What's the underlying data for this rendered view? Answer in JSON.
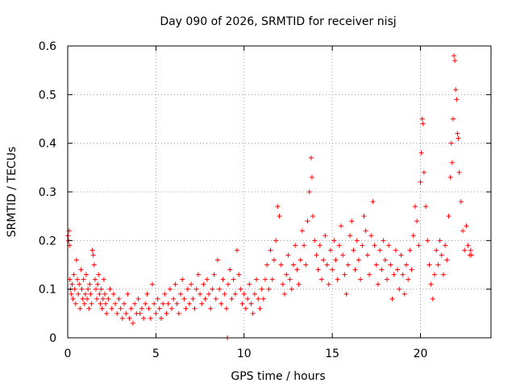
{
  "chart_data": {
    "type": "scatter",
    "title": "Day 090 of 2026, SRMTID for receiver nisj",
    "xlabel": "GPS time / hours",
    "ylabel": "SRMTID / TECUs",
    "xlim": [
      0,
      24
    ],
    "ylim": [
      0,
      0.6
    ],
    "xticks": [
      0,
      5,
      10,
      15,
      20
    ],
    "xtick_labels": [
      "0",
      "5",
      "10",
      "15",
      "20"
    ],
    "yticks": [
      0,
      0.1,
      0.2,
      0.3,
      0.4,
      0.5,
      0.6
    ],
    "ytick_labels": [
      "0",
      "0.1",
      "0.2",
      "0.3",
      "0.4",
      "0.5",
      "0.6"
    ],
    "grid": true,
    "marker": "plus",
    "color": "#ff0000",
    "series": [
      {
        "name": "SRMTID",
        "points": [
          [
            0.02,
            0.21
          ],
          [
            0.05,
            0.2
          ],
          [
            0.08,
            0.22
          ],
          [
            0.1,
            0.19
          ],
          [
            0.12,
            0.12
          ],
          [
            0.15,
            0.1
          ],
          [
            0.2,
            0.09
          ],
          [
            0.25,
            0.11
          ],
          [
            0.3,
            0.08
          ],
          [
            0.35,
            0.13
          ],
          [
            0.4,
            0.1
          ],
          [
            0.45,
            0.07
          ],
          [
            0.5,
            0.16
          ],
          [
            0.55,
            0.12
          ],
          [
            0.6,
            0.09
          ],
          [
            0.65,
            0.11
          ],
          [
            0.7,
            0.06
          ],
          [
            0.75,
            0.14
          ],
          [
            0.8,
            0.1
          ],
          [
            0.85,
            0.08
          ],
          [
            0.9,
            0.12
          ],
          [
            0.95,
            0.07
          ],
          [
            1.0,
            0.09
          ],
          [
            1.05,
            0.13
          ],
          [
            1.1,
            0.08
          ],
          [
            1.15,
            0.1
          ],
          [
            1.2,
            0.06
          ],
          [
            1.25,
            0.11
          ],
          [
            1.3,
            0.09
          ],
          [
            1.35,
            0.07
          ],
          [
            1.4,
            0.18
          ],
          [
            1.45,
            0.17
          ],
          [
            1.5,
            0.15
          ],
          [
            1.55,
            0.12
          ],
          [
            1.6,
            0.1
          ],
          [
            1.65,
            0.08
          ],
          [
            1.7,
            0.11
          ],
          [
            1.75,
            0.13
          ],
          [
            1.8,
            0.09
          ],
          [
            1.85,
            0.07
          ],
          [
            1.9,
            0.1
          ],
          [
            1.95,
            0.06
          ],
          [
            2.0,
            0.08
          ],
          [
            2.05,
            0.12
          ],
          [
            2.1,
            0.09
          ],
          [
            2.15,
            0.07
          ],
          [
            2.2,
            0.05
          ],
          [
            2.3,
            0.08
          ],
          [
            2.4,
            0.1
          ],
          [
            2.5,
            0.06
          ],
          [
            2.6,
            0.09
          ],
          [
            2.7,
            0.07
          ],
          [
            2.8,
            0.05
          ],
          [
            2.9,
            0.08
          ],
          [
            3.0,
            0.06
          ],
          [
            3.1,
            0.04
          ],
          [
            3.2,
            0.07
          ],
          [
            3.3,
            0.05
          ],
          [
            3.4,
            0.09
          ],
          [
            3.5,
            0.04
          ],
          [
            3.6,
            0.06
          ],
          [
            3.7,
            0.03
          ],
          [
            3.8,
            0.07
          ],
          [
            3.9,
            0.05
          ],
          [
            4.0,
            0.08
          ],
          [
            4.1,
            0.05
          ],
          [
            4.2,
            0.06
          ],
          [
            4.3,
            0.04
          ],
          [
            4.4,
            0.07
          ],
          [
            4.5,
            0.09
          ],
          [
            4.6,
            0.06
          ],
          [
            4.7,
            0.04
          ],
          [
            4.8,
            0.11
          ],
          [
            4.9,
            0.07
          ],
          [
            5.0,
            0.05
          ],
          [
            5.1,
            0.08
          ],
          [
            5.2,
            0.06
          ],
          [
            5.3,
            0.04
          ],
          [
            5.4,
            0.07
          ],
          [
            5.5,
            0.09
          ],
          [
            5.6,
            0.05
          ],
          [
            5.7,
            0.07
          ],
          [
            5.8,
            0.1
          ],
          [
            5.9,
            0.06
          ],
          [
            6.0,
            0.08
          ],
          [
            6.1,
            0.11
          ],
          [
            6.2,
            0.07
          ],
          [
            6.3,
            0.05
          ],
          [
            6.4,
            0.09
          ],
          [
            6.5,
            0.12
          ],
          [
            6.6,
            0.08
          ],
          [
            6.7,
            0.06
          ],
          [
            6.8,
            0.1
          ],
          [
            6.9,
            0.07
          ],
          [
            7.0,
            0.11
          ],
          [
            7.1,
            0.08
          ],
          [
            7.2,
            0.06
          ],
          [
            7.3,
            0.1
          ],
          [
            7.4,
            0.13
          ],
          [
            7.5,
            0.09
          ],
          [
            7.6,
            0.07
          ],
          [
            7.7,
            0.11
          ],
          [
            7.8,
            0.08
          ],
          [
            7.9,
            0.12
          ],
          [
            8.0,
            0.09
          ],
          [
            8.1,
            0.06
          ],
          [
            8.2,
            0.1
          ],
          [
            8.3,
            0.13
          ],
          [
            8.4,
            0.08
          ],
          [
            8.5,
            0.16
          ],
          [
            8.6,
            0.1
          ],
          [
            8.7,
            0.07
          ],
          [
            8.8,
            0.12
          ],
          [
            8.9,
            0.09
          ],
          [
            9.0,
            0.06
          ],
          [
            9.05,
            0.0
          ],
          [
            9.1,
            0.11
          ],
          [
            9.2,
            0.14
          ],
          [
            9.3,
            0.08
          ],
          [
            9.4,
            0.12
          ],
          [
            9.5,
            0.09
          ],
          [
            9.6,
            0.18
          ],
          [
            9.7,
            0.13
          ],
          [
            9.8,
            0.1
          ],
          [
            9.9,
            0.07
          ],
          [
            10.0,
            0.09
          ],
          [
            10.1,
            0.06
          ],
          [
            10.2,
            0.08
          ],
          [
            10.3,
            0.11
          ],
          [
            10.4,
            0.07
          ],
          [
            10.5,
            0.05
          ],
          [
            10.6,
            0.09
          ],
          [
            10.7,
            0.12
          ],
          [
            10.8,
            0.08
          ],
          [
            10.9,
            0.06
          ],
          [
            11.0,
            0.1
          ],
          [
            11.1,
            0.08
          ],
          [
            11.2,
            0.12
          ],
          [
            11.3,
            0.15
          ],
          [
            11.4,
            0.1
          ],
          [
            11.5,
            0.18
          ],
          [
            11.6,
            0.12
          ],
          [
            11.7,
            0.16
          ],
          [
            11.8,
            0.2
          ],
          [
            11.9,
            0.27
          ],
          [
            12.0,
            0.25
          ],
          [
            12.1,
            0.15
          ],
          [
            12.2,
            0.11
          ],
          [
            12.3,
            0.09
          ],
          [
            12.4,
            0.13
          ],
          [
            12.5,
            0.17
          ],
          [
            12.6,
            0.12
          ],
          [
            12.7,
            0.1
          ],
          [
            12.8,
            0.15
          ],
          [
            12.9,
            0.19
          ],
          [
            13.0,
            0.14
          ],
          [
            13.1,
            0.11
          ],
          [
            13.2,
            0.16
          ],
          [
            13.3,
            0.22
          ],
          [
            13.4,
            0.19
          ],
          [
            13.5,
            0.15
          ],
          [
            13.6,
            0.24
          ],
          [
            13.7,
            0.3
          ],
          [
            13.8,
            0.37
          ],
          [
            13.85,
            0.33
          ],
          [
            13.9,
            0.25
          ],
          [
            14.0,
            0.2
          ],
          [
            14.1,
            0.17
          ],
          [
            14.2,
            0.14
          ],
          [
            14.3,
            0.19
          ],
          [
            14.4,
            0.12
          ],
          [
            14.5,
            0.16
          ],
          [
            14.6,
            0.21
          ],
          [
            14.7,
            0.15
          ],
          [
            14.8,
            0.11
          ],
          [
            14.9,
            0.18
          ],
          [
            15.0,
            0.14
          ],
          [
            15.1,
            0.2
          ],
          [
            15.2,
            0.16
          ],
          [
            15.3,
            0.12
          ],
          [
            15.4,
            0.19
          ],
          [
            15.5,
            0.23
          ],
          [
            15.6,
            0.17
          ],
          [
            15.7,
            0.13
          ],
          [
            15.8,
            0.09
          ],
          [
            15.9,
            0.15
          ],
          [
            16.0,
            0.21
          ],
          [
            16.1,
            0.24
          ],
          [
            16.2,
            0.18
          ],
          [
            16.3,
            0.14
          ],
          [
            16.4,
            0.2
          ],
          [
            16.5,
            0.16
          ],
          [
            16.6,
            0.12
          ],
          [
            16.7,
            0.19
          ],
          [
            16.8,
            0.25
          ],
          [
            16.9,
            0.22
          ],
          [
            17.0,
            0.17
          ],
          [
            17.1,
            0.13
          ],
          [
            17.2,
            0.21
          ],
          [
            17.3,
            0.28
          ],
          [
            17.4,
            0.19
          ],
          [
            17.5,
            0.15
          ],
          [
            17.6,
            0.11
          ],
          [
            17.7,
            0.18
          ],
          [
            17.8,
            0.14
          ],
          [
            17.9,
            0.2
          ],
          [
            18.0,
            0.16
          ],
          [
            18.1,
            0.12
          ],
          [
            18.2,
            0.19
          ],
          [
            18.3,
            0.15
          ],
          [
            18.4,
            0.08
          ],
          [
            18.5,
            0.13
          ],
          [
            18.6,
            0.18
          ],
          [
            18.7,
            0.14
          ],
          [
            18.8,
            0.1
          ],
          [
            18.9,
            0.17
          ],
          [
            19.0,
            0.13
          ],
          [
            19.1,
            0.09
          ],
          [
            19.2,
            0.15
          ],
          [
            19.3,
            0.12
          ],
          [
            19.4,
            0.18
          ],
          [
            19.5,
            0.14
          ],
          [
            19.6,
            0.21
          ],
          [
            19.7,
            0.27
          ],
          [
            19.8,
            0.24
          ],
          [
            19.9,
            0.19
          ],
          [
            20.0,
            0.32
          ],
          [
            20.05,
            0.38
          ],
          [
            20.1,
            0.45
          ],
          [
            20.15,
            0.44
          ],
          [
            20.2,
            0.34
          ],
          [
            20.3,
            0.27
          ],
          [
            20.4,
            0.2
          ],
          [
            20.5,
            0.15
          ],
          [
            20.6,
            0.11
          ],
          [
            20.7,
            0.08
          ],
          [
            20.8,
            0.13
          ],
          [
            20.9,
            0.18
          ],
          [
            21.0,
            0.15
          ],
          [
            21.1,
            0.2
          ],
          [
            21.2,
            0.17
          ],
          [
            21.3,
            0.13
          ],
          [
            21.4,
            0.19
          ],
          [
            21.5,
            0.16
          ],
          [
            21.6,
            0.25
          ],
          [
            21.7,
            0.33
          ],
          [
            21.75,
            0.4
          ],
          [
            21.8,
            0.36
          ],
          [
            21.85,
            0.45
          ],
          [
            21.9,
            0.58
          ],
          [
            21.95,
            0.57
          ],
          [
            22.0,
            0.51
          ],
          [
            22.05,
            0.49
          ],
          [
            22.1,
            0.42
          ],
          [
            22.15,
            0.41
          ],
          [
            22.2,
            0.34
          ],
          [
            22.3,
            0.28
          ],
          [
            22.4,
            0.22
          ],
          [
            22.5,
            0.18
          ],
          [
            22.6,
            0.23
          ],
          [
            22.7,
            0.19
          ],
          [
            22.8,
            0.17
          ],
          [
            22.85,
            0.18
          ],
          [
            22.9,
            0.17
          ]
        ]
      }
    ]
  }
}
